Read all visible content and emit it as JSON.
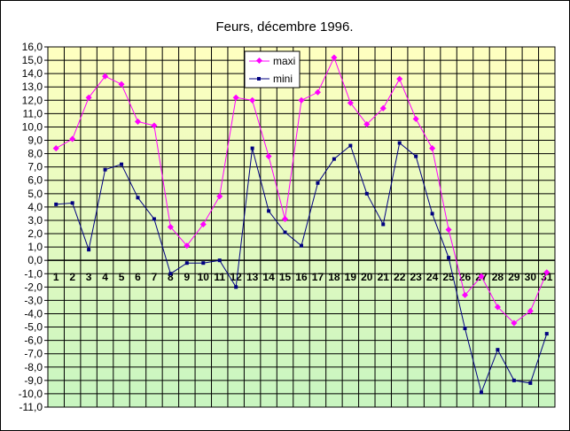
{
  "chart_data": {
    "type": "line",
    "title": "Feurs, décembre 1996.",
    "xlabel": "",
    "ylabel": "",
    "categories": [
      "1",
      "2",
      "3",
      "4",
      "5",
      "6",
      "7",
      "8",
      "9",
      "10",
      "11",
      "12",
      "13",
      "14",
      "15",
      "16",
      "17",
      "18",
      "19",
      "20",
      "21",
      "22",
      "23",
      "24",
      "25",
      "26",
      "27",
      "28",
      "29",
      "30",
      "31"
    ],
    "series": [
      {
        "name": "maxi",
        "color": "#ff00ff",
        "marker": "diamond",
        "values": [
          8.4,
          9.1,
          12.2,
          13.8,
          13.2,
          10.4,
          10.1,
          2.5,
          1.1,
          2.7,
          4.8,
          12.2,
          12.0,
          7.8,
          3.1,
          12.0,
          12.6,
          15.2,
          11.8,
          10.2,
          11.4,
          13.6,
          10.6,
          8.4,
          2.3,
          -2.6,
          -1.2,
          -3.5,
          -4.7,
          -3.8,
          -0.9
        ]
      },
      {
        "name": "mini",
        "color": "#000080",
        "marker": "square",
        "values": [
          4.2,
          4.3,
          0.8,
          6.8,
          7.2,
          4.7,
          3.1,
          -1.0,
          -0.2,
          -0.2,
          0.0,
          -2.0,
          8.4,
          3.7,
          2.1,
          1.1,
          5.8,
          7.6,
          8.6,
          5.0,
          2.7,
          8.8,
          7.8,
          3.5,
          0.2,
          -5.1,
          -9.9,
          -6.7,
          -9.0,
          -9.2,
          -5.5
        ]
      }
    ],
    "ylim": [
      -11,
      16
    ],
    "ytick_labels": [
      "16,0",
      "15,0",
      "14,0",
      "13,0",
      "12,0",
      "11,0",
      "10,0",
      "9,0",
      "8,0",
      "7,0",
      "6,0",
      "5,0",
      "4,0",
      "3,0",
      "2,0",
      "1,0",
      "0,0",
      "-1,0",
      "-2,0",
      "-3,0",
      "-4,0",
      "-5,0",
      "-6,0",
      "-7,0",
      "-8,0",
      "-9,0",
      "-10,0",
      "-11,0"
    ],
    "grid": true,
    "legend": "top-center",
    "colors": {
      "background_top": "#ffffc0",
      "background_bottom": "#c8f5c0",
      "gridline": "#000000"
    }
  }
}
